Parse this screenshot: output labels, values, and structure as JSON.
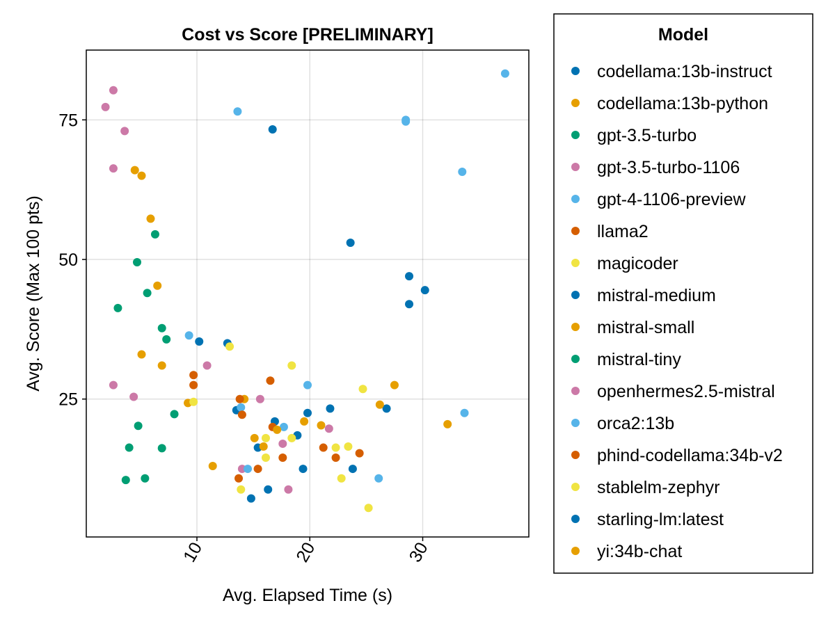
{
  "chart_data": {
    "type": "scatter",
    "title": "Cost vs Score [PRELIMINARY]",
    "xlabel": "Avg. Elapsed Time (s)",
    "ylabel": "Avg. Score (Max 100 pts)",
    "xlim": [
      0.2,
      39.4
    ],
    "ylim": [
      0.3,
      87.5
    ],
    "xticks": [
      10,
      20,
      30
    ],
    "yticks": [
      25,
      50,
      75
    ],
    "grid": true,
    "legend": {
      "title": "Model",
      "placement": "right"
    },
    "series": [
      {
        "name": "codellama:13b-instruct",
        "color": "#0072B2",
        "points": [
          [
            12.7,
            35.0
          ],
          [
            16.7,
            73.3
          ],
          [
            23.6,
            53.0
          ],
          [
            28.8,
            47.0
          ],
          [
            30.2,
            44.5
          ],
          [
            28.8,
            42.0
          ],
          [
            16.9,
            21.0
          ],
          [
            18.9,
            18.5
          ],
          [
            15.4,
            16.3
          ],
          [
            13.5,
            23.0
          ],
          [
            19.8,
            22.5
          ],
          [
            21.8,
            23.3
          ],
          [
            26.8,
            23.3
          ],
          [
            19.4,
            12.5
          ],
          [
            23.8,
            12.5
          ],
          [
            14.8,
            7.2
          ],
          [
            16.3,
            8.8
          ]
        ]
      },
      {
        "name": "codellama:13b-python",
        "color": "#E69F00",
        "points": [
          [
            4.5,
            66.0
          ],
          [
            5.1,
            65.0
          ],
          [
            5.9,
            57.3
          ],
          [
            6.5,
            45.3
          ],
          [
            5.1,
            33.0
          ],
          [
            6.9,
            31.0
          ],
          [
            9.2,
            24.3
          ],
          [
            14.2,
            25.0
          ],
          [
            19.5,
            21.0
          ],
          [
            21.0,
            20.3
          ],
          [
            15.1,
            18.0
          ],
          [
            15.9,
            16.5
          ],
          [
            11.4,
            13.0
          ],
          [
            27.5,
            27.5
          ],
          [
            26.2,
            24.0
          ],
          [
            32.2,
            20.5
          ]
        ]
      },
      {
        "name": "gpt-3.5-turbo",
        "color": "#009E73",
        "points": [
          [
            6.3,
            54.5
          ],
          [
            4.7,
            49.5
          ],
          [
            5.6,
            44.0
          ],
          [
            3.0,
            41.3
          ],
          [
            6.9,
            37.7
          ],
          [
            7.3,
            35.7
          ],
          [
            8.0,
            22.3
          ],
          [
            4.8,
            20.2
          ],
          [
            4.0,
            16.3
          ],
          [
            6.9,
            16.2
          ],
          [
            5.4,
            10.8
          ],
          [
            3.7,
            10.5
          ]
        ]
      },
      {
        "name": "gpt-3.5-turbo-1106",
        "color": "#CC79A7",
        "points": [
          [
            2.6,
            80.3
          ],
          [
            1.9,
            77.3
          ],
          [
            3.6,
            73.0
          ],
          [
            2.6,
            66.3
          ],
          [
            2.6,
            27.5
          ],
          [
            4.4,
            25.4
          ],
          [
            10.9,
            31.0
          ],
          [
            15.6,
            25.0
          ],
          [
            17.6,
            17.0
          ],
          [
            21.7,
            19.7
          ],
          [
            14.0,
            12.5
          ],
          [
            18.1,
            8.8
          ]
        ]
      },
      {
        "name": "gpt-4-1106-preview",
        "color": "#56B4E9",
        "points": [
          [
            37.3,
            83.3
          ],
          [
            13.6,
            76.5
          ],
          [
            28.5,
            75.0
          ],
          [
            28.5,
            74.7
          ],
          [
            33.5,
            65.7
          ],
          [
            9.3,
            36.4
          ],
          [
            19.8,
            27.5
          ],
          [
            33.7,
            22.5
          ],
          [
            17.7,
            20.0
          ],
          [
            14.5,
            12.5
          ],
          [
            26.1,
            10.8
          ],
          [
            13.9,
            23.5
          ]
        ]
      },
      {
        "name": "llama2",
        "color": "#D55E00",
        "points": [
          [
            9.7,
            29.3
          ],
          [
            9.7,
            27.5
          ],
          [
            16.5,
            28.3
          ],
          [
            13.8,
            25.0
          ],
          [
            14.0,
            22.2
          ],
          [
            16.7,
            20.0
          ],
          [
            17.6,
            14.5
          ],
          [
            21.2,
            16.3
          ],
          [
            22.3,
            14.5
          ],
          [
            24.4,
            15.3
          ],
          [
            15.4,
            12.5
          ],
          [
            13.7,
            10.8
          ]
        ]
      },
      {
        "name": "magicoder",
        "color": "#F0E442",
        "points": [
          [
            12.9,
            34.4
          ],
          [
            18.4,
            31.0
          ],
          [
            24.7,
            26.8
          ],
          [
            9.7,
            24.5
          ],
          [
            16.1,
            18.0
          ],
          [
            18.4,
            18.0
          ],
          [
            22.3,
            16.3
          ],
          [
            23.4,
            16.5
          ],
          [
            16.1,
            14.5
          ],
          [
            13.9,
            8.8
          ],
          [
            22.8,
            10.8
          ],
          [
            25.2,
            5.5
          ]
        ]
      },
      {
        "name": "mistral-medium",
        "color": "#0072B2",
        "points": [
          [
            10.2,
            35.3
          ]
        ]
      },
      {
        "name": "mistral-small",
        "color": "#E69F00",
        "points": [
          [
            17.1,
            19.5
          ]
        ]
      },
      {
        "name": "mistral-tiny",
        "color": "#009E73",
        "points": []
      },
      {
        "name": "openhermes2.5-mistral",
        "color": "#CC79A7",
        "points": []
      },
      {
        "name": "orca2:13b",
        "color": "#56B4E9",
        "points": []
      },
      {
        "name": "phind-codellama:34b-v2",
        "color": "#D55E00",
        "points": []
      },
      {
        "name": "stablelm-zephyr",
        "color": "#F0E442",
        "points": []
      },
      {
        "name": "starling-lm:latest",
        "color": "#0072B2",
        "points": []
      },
      {
        "name": "yi:34b-chat",
        "color": "#E69F00",
        "points": []
      }
    ]
  }
}
